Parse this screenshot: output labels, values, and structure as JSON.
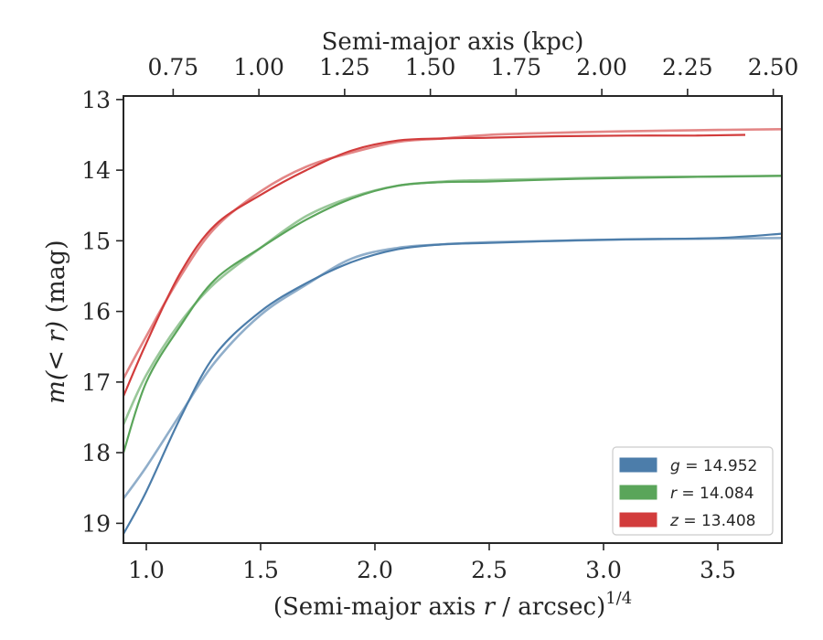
{
  "chart_data": {
    "type": "line",
    "xlabel_top": "Semi-major axis (kpc)",
    "xlabel_prefix": "(Semi-major axis ",
    "xlabel_var": "r",
    "xlabel_suffix": " / arcsec)",
    "xlabel_sup": "1/4",
    "ylabel_var": "m",
    "ylabel_inner": "(< r)",
    "ylabel_unit": " (mag)",
    "xlim": [
      0.9,
      3.78
    ],
    "ylim": [
      19.28,
      12.95
    ],
    "y_inverted": true,
    "x_ticks": [
      "1.0",
      "1.5",
      "2.0",
      "2.5",
      "3.0",
      "3.5"
    ],
    "x_tick_values": [
      1.0,
      1.5,
      2.0,
      2.5,
      3.0,
      3.5
    ],
    "y_ticks": [
      "13",
      "14",
      "15",
      "16",
      "17",
      "18",
      "19"
    ],
    "y_tick_values": [
      13,
      14,
      15,
      16,
      17,
      18,
      19
    ],
    "top_ticks": [
      "0.75",
      "1.00",
      "1.25",
      "1.50",
      "1.75",
      "2.00",
      "2.25",
      "2.50"
    ],
    "top_tick_values": [
      0.75,
      1.0,
      1.25,
      1.5,
      1.75,
      2.0,
      2.25,
      2.5
    ],
    "top_axis_xlim": [
      0.605,
      2.525
    ],
    "legend_position": "lower right",
    "grid": false,
    "series": [
      {
        "name": "g = 14.952",
        "band": "g",
        "value": "14.952",
        "color": "#4c7daa",
        "x": [
          0.9,
          1.0,
          1.15,
          1.3,
          1.5,
          1.7,
          1.9,
          2.1,
          2.3,
          2.5,
          2.8,
          3.1,
          3.5,
          3.78
        ],
        "y": [
          19.15,
          18.55,
          17.5,
          16.62,
          16.0,
          15.6,
          15.3,
          15.12,
          15.05,
          15.03,
          15.0,
          14.98,
          14.96,
          14.9
        ],
        "x_alt": [
          0.9,
          1.0,
          1.15,
          1.3,
          1.5,
          1.7,
          1.9,
          2.1,
          2.3,
          2.5,
          2.8,
          3.1,
          3.5,
          3.78
        ],
        "y_alt": [
          18.65,
          18.2,
          17.45,
          16.72,
          16.05,
          15.62,
          15.25,
          15.1,
          15.05,
          15.02,
          15.0,
          14.98,
          14.97,
          14.96
        ]
      },
      {
        "name": "r = 14.084",
        "band": "r",
        "value": "14.084",
        "color": "#5aa55a",
        "x": [
          0.9,
          1.0,
          1.15,
          1.3,
          1.5,
          1.7,
          1.9,
          2.1,
          2.3,
          2.5,
          2.8,
          3.1,
          3.5,
          3.78
        ],
        "y": [
          18.0,
          17.0,
          16.2,
          15.55,
          15.1,
          14.7,
          14.4,
          14.22,
          14.17,
          14.16,
          14.13,
          14.11,
          14.09,
          14.08
        ],
        "x_alt": [
          0.9,
          1.0,
          1.15,
          1.3,
          1.5,
          1.7,
          1.9,
          2.1,
          2.3,
          2.5,
          2.8,
          3.1,
          3.5,
          3.78
        ],
        "y_alt": [
          17.6,
          16.9,
          16.15,
          15.6,
          15.1,
          14.65,
          14.38,
          14.22,
          14.16,
          14.14,
          14.12,
          14.1,
          14.09,
          14.08
        ]
      },
      {
        "name": "z = 13.408",
        "band": "z",
        "value": "13.408",
        "color": "#d23c3c",
        "x": [
          0.9,
          1.0,
          1.15,
          1.3,
          1.5,
          1.7,
          1.9,
          2.1,
          2.3,
          2.5,
          2.8,
          3.1,
          3.4,
          3.62
        ],
        "y": [
          17.2,
          16.45,
          15.45,
          14.78,
          14.35,
          14.0,
          13.72,
          13.58,
          13.55,
          13.54,
          13.52,
          13.51,
          13.51,
          13.5
        ],
        "x_alt": [
          0.9,
          1.0,
          1.15,
          1.3,
          1.5,
          1.7,
          1.9,
          2.1,
          2.3,
          2.5,
          2.8,
          3.1,
          3.5,
          3.78
        ],
        "y_alt": [
          16.95,
          16.35,
          15.5,
          14.82,
          14.3,
          13.95,
          13.75,
          13.6,
          13.55,
          13.5,
          13.47,
          13.45,
          13.43,
          13.42
        ]
      }
    ]
  }
}
